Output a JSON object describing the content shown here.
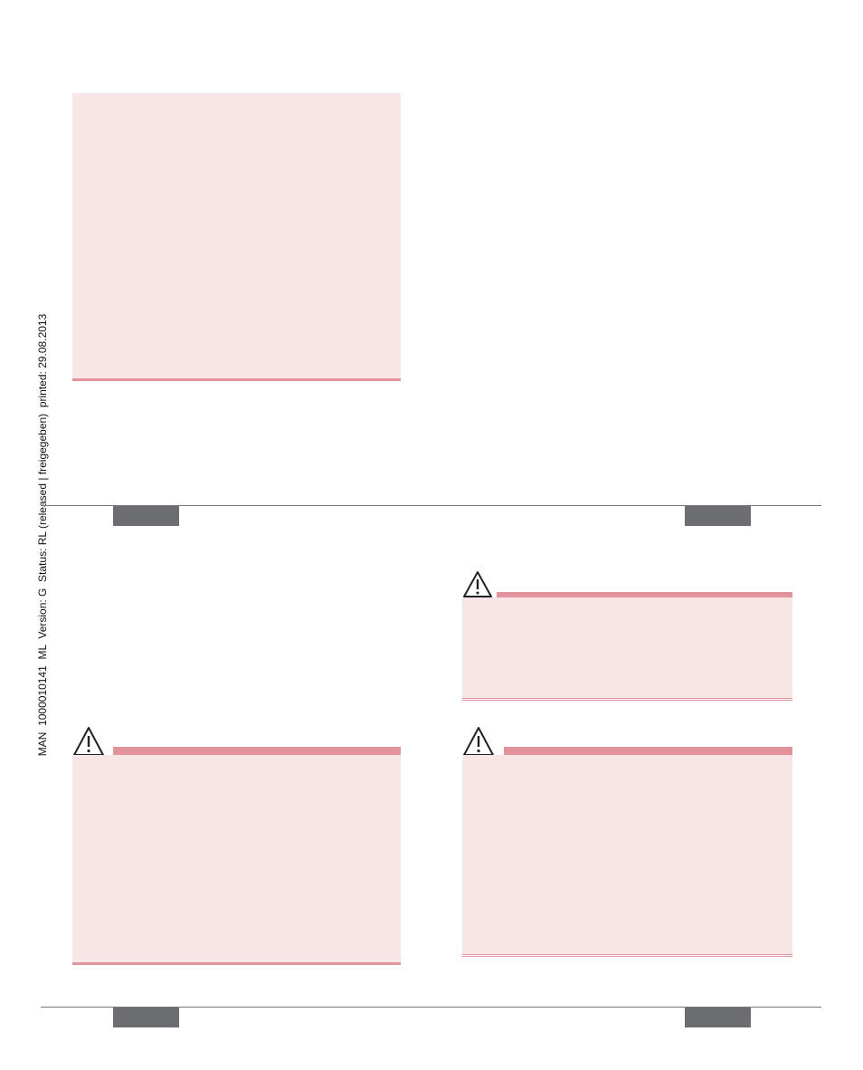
{
  "sidebar": {
    "text": "MAN  1000010141  ML  Version: G  Status: RL (released | freigegeben)  printed: 29.08.2013"
  }
}
